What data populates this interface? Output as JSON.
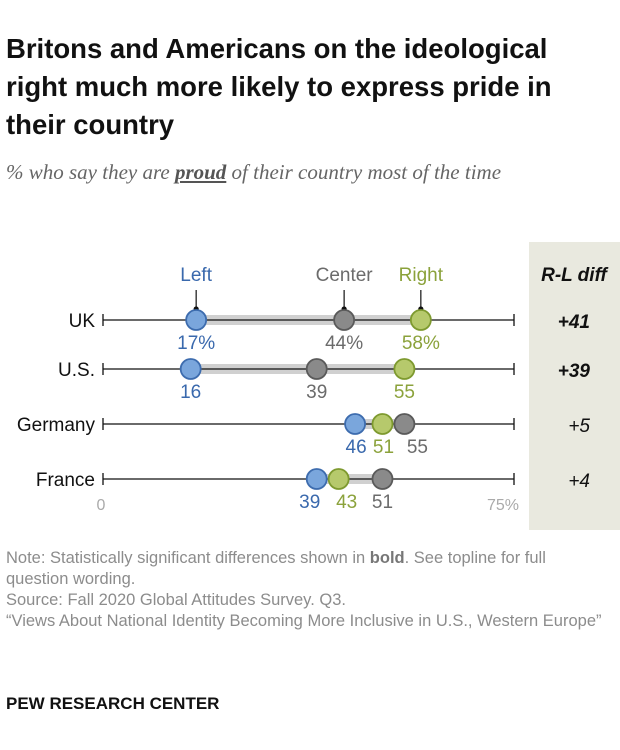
{
  "title": "Britons and Americans on the ideological right much more likely to express pride in their country",
  "subtitle": {
    "pre": "% who say they are ",
    "emphasis": "proud",
    "post": " of their country most of the time"
  },
  "chart_data": {
    "type": "dot",
    "xlim": [
      0,
      75
    ],
    "x_tick_labels": [
      "0",
      "75%"
    ],
    "categories": [
      "UK",
      "U.S.",
      "Germany",
      "France"
    ],
    "series": [
      {
        "name": "Left",
        "color": "#7aa6dc",
        "stroke": "#3d6cae",
        "label_color": "#3a69ad",
        "values": [
          17,
          16,
          46,
          39
        ]
      },
      {
        "name": "Center",
        "color": "#8a8a8a",
        "stroke": "#5a5a5a",
        "label_color": "#6b6b6b",
        "values": [
          44,
          39,
          55,
          51
        ]
      },
      {
        "name": "Right",
        "color": "#b6c96c",
        "stroke": "#7e9a2f",
        "label_color": "#8ba23b",
        "values": [
          58,
          55,
          51,
          43
        ]
      }
    ],
    "diff_header": "R-L diff",
    "diffs": [
      "+41",
      "+39",
      "+5",
      "+4"
    ],
    "diff_bold": [
      true,
      true,
      false,
      false
    ],
    "diff_panel_color": "#e9e9df",
    "range_bar_color": "#d0d0d0",
    "legend_placement": "top, labels above first row"
  },
  "notes": {
    "note_pre": "Note: Statistically significant differences shown in ",
    "note_bold": "bold",
    "note_post": ". See topline for full question wording.",
    "source": "Source: Fall 2020 Global Attitudes Survey. Q3.",
    "report": "“Views About National Identity Becoming More Inclusive in U.S., Western Europe”"
  },
  "brand": "PEW RESEARCH CENTER"
}
